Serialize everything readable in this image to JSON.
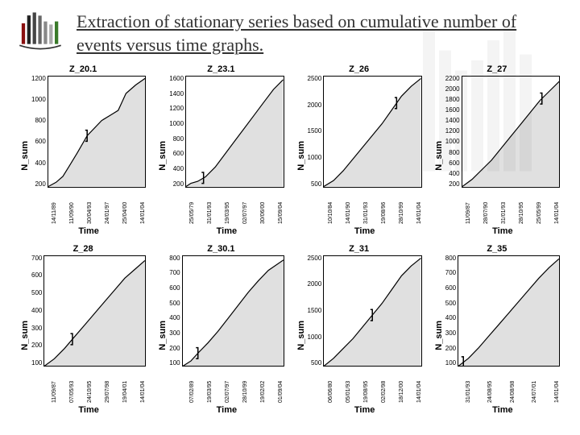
{
  "title": "Extraction of  stationary series based on cumulative number of events versus time graphs.",
  "logo": {
    "bars": [
      "#8a0e0e",
      "#222",
      "#444",
      "#666",
      "#888",
      "#aaa",
      "#3a7a2a"
    ]
  },
  "axis": {
    "y_label": "N_sum",
    "x_label": "Time"
  },
  "panels": [
    {
      "id": "Z_20.1",
      "y_ticks": [
        "200",
        "400",
        "600",
        "800",
        "1000",
        "1200"
      ],
      "y_max": 1300,
      "x_ticks": [
        "14/11/89",
        "11/09/90",
        "30/04/93",
        "24/01/97",
        "25/04/00",
        "14/01/04"
      ],
      "curve": [
        [
          0,
          0
        ],
        [
          8,
          50
        ],
        [
          15,
          120
        ],
        [
          22,
          250
        ],
        [
          30,
          400
        ],
        [
          40,
          600
        ],
        [
          55,
          780
        ],
        [
          65,
          850
        ],
        [
          72,
          900
        ],
        [
          80,
          1100
        ],
        [
          90,
          1200
        ],
        [
          100,
          1280
        ]
      ],
      "bracket_x": 40
    },
    {
      "id": "Z_23.1",
      "y_ticks": [
        "200",
        "400",
        "600",
        "800",
        "1000",
        "1200",
        "1400",
        "1600"
      ],
      "y_max": 1700,
      "x_ticks": [
        "25/05/79",
        "31/01/93",
        "19/03/95",
        "02/07/97",
        "30/06/00",
        "15/09/04"
      ],
      "curve": [
        [
          0,
          0
        ],
        [
          5,
          50
        ],
        [
          12,
          80
        ],
        [
          20,
          150
        ],
        [
          30,
          300
        ],
        [
          40,
          500
        ],
        [
          50,
          700
        ],
        [
          60,
          900
        ],
        [
          70,
          1100
        ],
        [
          80,
          1300
        ],
        [
          90,
          1500
        ],
        [
          100,
          1650
        ]
      ],
      "bracket_x": 18
    },
    {
      "id": "Z_26",
      "y_ticks": [
        "500",
        "1000",
        "1500",
        "2000",
        "2500"
      ],
      "y_max": 2800,
      "x_ticks": [
        "10/10/84",
        "14/01/90",
        "31/01/93",
        "19/08/96",
        "28/10/99",
        "14/01/04"
      ],
      "curve": [
        [
          0,
          0
        ],
        [
          10,
          150
        ],
        [
          20,
          400
        ],
        [
          30,
          700
        ],
        [
          40,
          1000
        ],
        [
          50,
          1300
        ],
        [
          60,
          1600
        ],
        [
          70,
          1950
        ],
        [
          80,
          2300
        ],
        [
          90,
          2550
        ],
        [
          100,
          2750
        ]
      ],
      "bracket_x": 75
    },
    {
      "id": "Z_27",
      "y_ticks": [
        "200",
        "400",
        "600",
        "800",
        "1000",
        "1200",
        "1400",
        "1600",
        "1800",
        "2000",
        "2200"
      ],
      "y_max": 2300,
      "x_ticks": [
        "11/09/87",
        "28/07/90",
        "31/01/93",
        "28/10/95",
        "25/05/99",
        "14/01/04"
      ],
      "curve": [
        [
          0,
          0
        ],
        [
          10,
          150
        ],
        [
          20,
          350
        ],
        [
          30,
          550
        ],
        [
          40,
          800
        ],
        [
          50,
          1050
        ],
        [
          60,
          1300
        ],
        [
          70,
          1550
        ],
        [
          80,
          1800
        ],
        [
          90,
          2000
        ],
        [
          100,
          2200
        ]
      ],
      "bracket_x": 82
    },
    {
      "id": "Z_28",
      "y_ticks": [
        "100",
        "200",
        "300",
        "400",
        "500",
        "600",
        "700"
      ],
      "y_max": 750,
      "x_ticks": [
        "11/09/87",
        "07/05/93",
        "24/10/95",
        "29/07/98",
        "19/04/01",
        "14/01/04"
      ],
      "curve": [
        [
          0,
          0
        ],
        [
          10,
          50
        ],
        [
          20,
          120
        ],
        [
          30,
          200
        ],
        [
          40,
          280
        ],
        [
          50,
          360
        ],
        [
          60,
          440
        ],
        [
          70,
          520
        ],
        [
          80,
          600
        ],
        [
          90,
          660
        ],
        [
          100,
          720
        ]
      ],
      "bracket_x": 28
    },
    {
      "id": "Z_30.1",
      "y_ticks": [
        "100",
        "200",
        "300",
        "400",
        "500",
        "600",
        "700",
        "800"
      ],
      "y_max": 850,
      "x_ticks": [
        "07/02/89",
        "19/03/95",
        "02/07/97",
        "28/10/99",
        "19/02/02",
        "01/09/04"
      ],
      "curve": [
        [
          0,
          0
        ],
        [
          8,
          40
        ],
        [
          15,
          100
        ],
        [
          25,
          180
        ],
        [
          35,
          270
        ],
        [
          45,
          370
        ],
        [
          55,
          470
        ],
        [
          65,
          570
        ],
        [
          75,
          660
        ],
        [
          85,
          740
        ],
        [
          100,
          820
        ]
      ],
      "bracket_x": 15
    },
    {
      "id": "Z_31",
      "y_ticks": [
        "500",
        "1000",
        "1500",
        "2000",
        "2500"
      ],
      "y_max": 2800,
      "x_ticks": [
        "06/06/80",
        "05/01/93",
        "19/08/95",
        "02/02/98",
        "18/12/00",
        "14/01/04"
      ],
      "curve": [
        [
          0,
          0
        ],
        [
          10,
          200
        ],
        [
          20,
          450
        ],
        [
          30,
          700
        ],
        [
          40,
          1000
        ],
        [
          50,
          1300
        ],
        [
          60,
          1600
        ],
        [
          70,
          1950
        ],
        [
          80,
          2300
        ],
        [
          90,
          2550
        ],
        [
          100,
          2750
        ]
      ],
      "bracket_x": 50
    },
    {
      "id": "Z_35",
      "y_ticks": [
        "100",
        "200",
        "300",
        "400",
        "500",
        "600",
        "700",
        "800"
      ],
      "y_max": 850,
      "x_ticks": [
        "31/01/93",
        "24/08/95",
        "24/08/98",
        "24/07/01",
        "14/01/04"
      ],
      "curve": [
        [
          0,
          0
        ],
        [
          10,
          60
        ],
        [
          20,
          140
        ],
        [
          30,
          230
        ],
        [
          40,
          320
        ],
        [
          50,
          410
        ],
        [
          60,
          500
        ],
        [
          70,
          590
        ],
        [
          80,
          680
        ],
        [
          90,
          760
        ],
        [
          100,
          830
        ]
      ],
      "bracket_x": 5
    }
  ],
  "style": {
    "line_color": "#000000",
    "fill_color": "#cccccc",
    "fill_opacity": 0.6,
    "line_width": 1.2,
    "bg": "#ffffff",
    "title_fontsize": 11,
    "tick_fontsize": 8,
    "label_fontsize": 11
  }
}
